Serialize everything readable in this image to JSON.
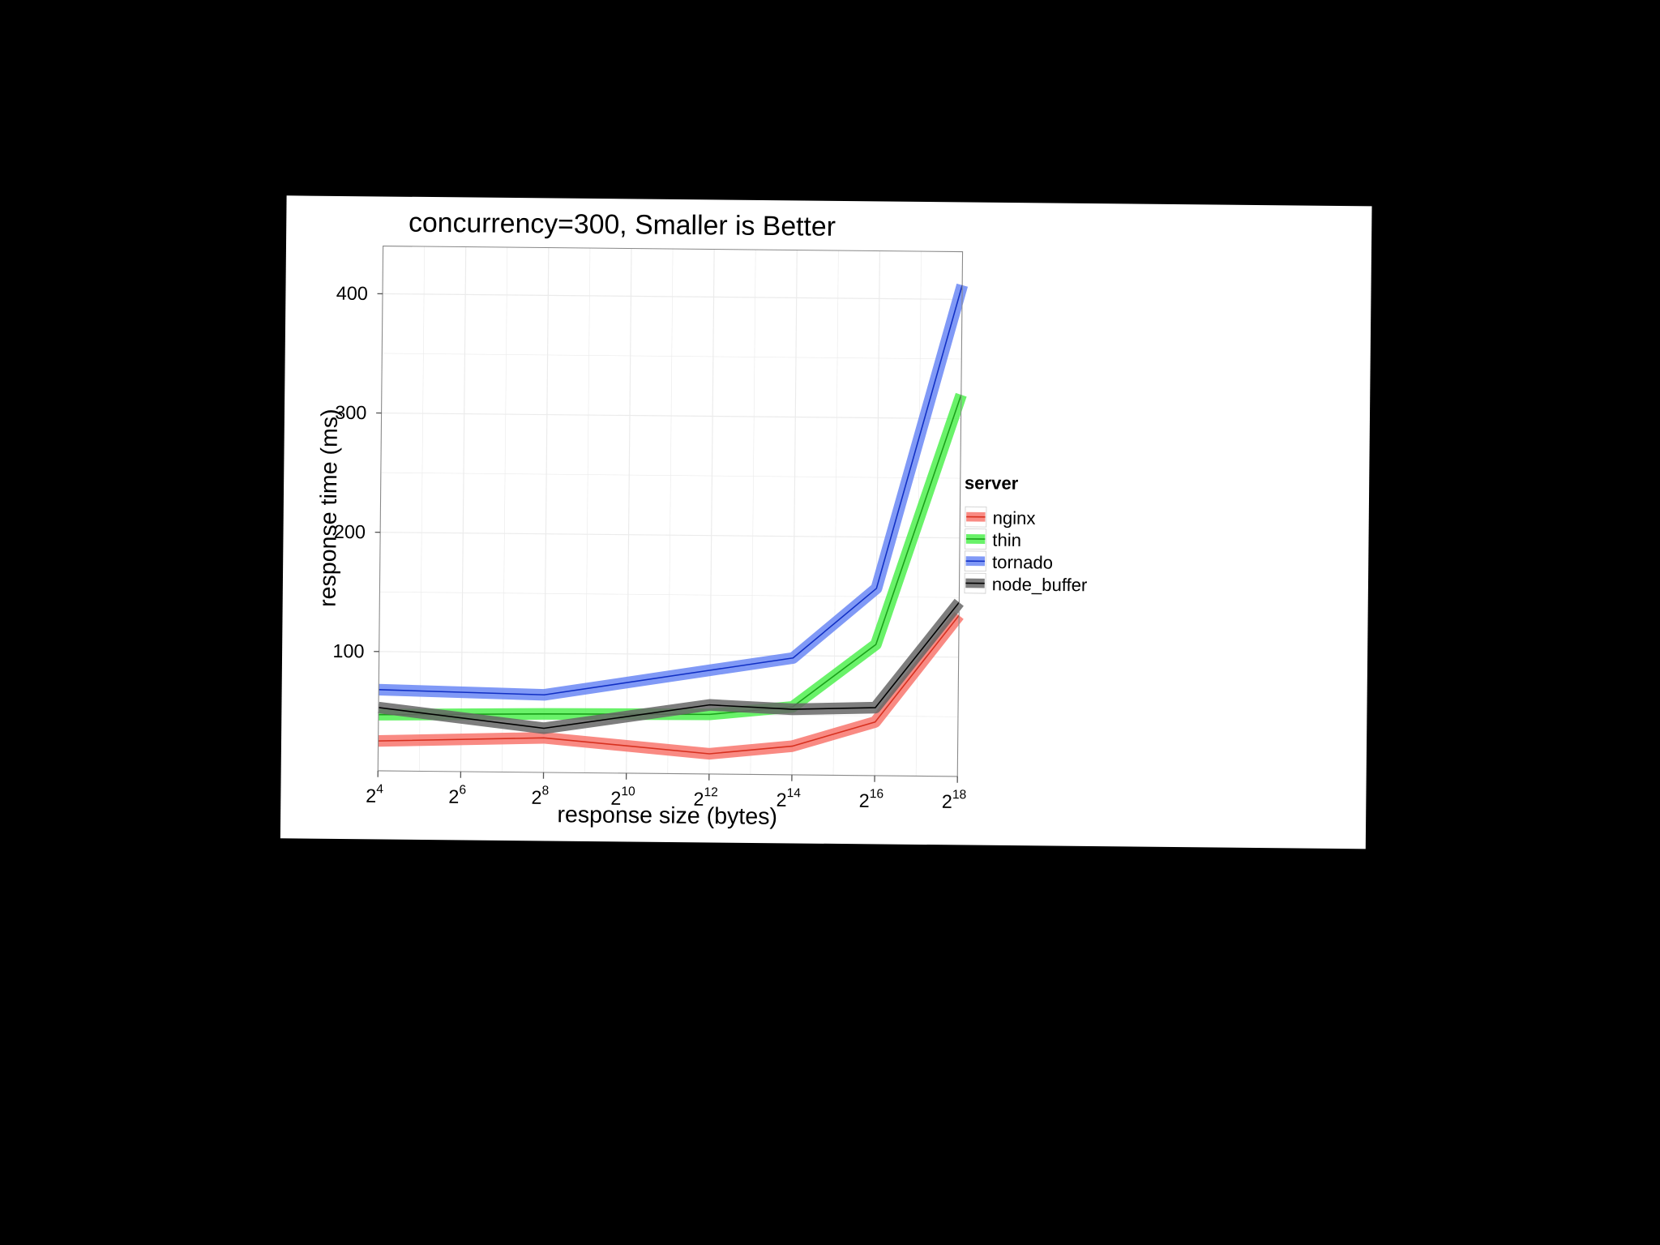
{
  "colors": {
    "background": "#000000",
    "paper": "#ffffff",
    "grid": "#ebebeb",
    "axis": "#888888",
    "text": "#000000"
  },
  "chart_data": {
    "type": "line",
    "title": "concurrency=300, Smaller is Better",
    "xlabel": "response size (bytes)",
    "ylabel": "response time (ms)",
    "x_scale": "log2",
    "x": [
      16,
      256,
      4096,
      16384,
      65536,
      262144
    ],
    "x_ticks": [
      {
        "value": 16,
        "base": "2",
        "exp": "4"
      },
      {
        "value": 64,
        "base": "2",
        "exp": "6"
      },
      {
        "value": 256,
        "base": "2",
        "exp": "8"
      },
      {
        "value": 1024,
        "base": "2",
        "exp": "10"
      },
      {
        "value": 4096,
        "base": "2",
        "exp": "12"
      },
      {
        "value": 16384,
        "base": "2",
        "exp": "14"
      },
      {
        "value": 65536,
        "base": "2",
        "exp": "16"
      },
      {
        "value": 262144,
        "base": "2",
        "exp": "18"
      }
    ],
    "xlim": [
      16,
      262144
    ],
    "ylim": [
      0,
      440
    ],
    "y_ticks": [
      "100",
      "200",
      "300",
      "400"
    ],
    "grid": true,
    "legend": {
      "title": "server",
      "position": "right"
    },
    "series": [
      {
        "name": "nginx",
        "color": "#f8766d",
        "line_color": "#d7301f",
        "values": [
          25,
          29,
          17,
          24,
          45,
          135
        ]
      },
      {
        "name": "thin",
        "color": "#4ff04f",
        "line_color": "#1aa01a",
        "values": [
          47,
          49,
          50,
          57,
          110,
          320
        ]
      },
      {
        "name": "tornado",
        "color": "#6a87f5",
        "line_color": "#102fc4",
        "values": [
          68,
          65,
          87,
          98,
          157,
          412
        ]
      },
      {
        "name": "node_buffer",
        "color": "#666666",
        "line_color": "#000000",
        "values": [
          53,
          37,
          58,
          55,
          57,
          146
        ]
      }
    ]
  }
}
